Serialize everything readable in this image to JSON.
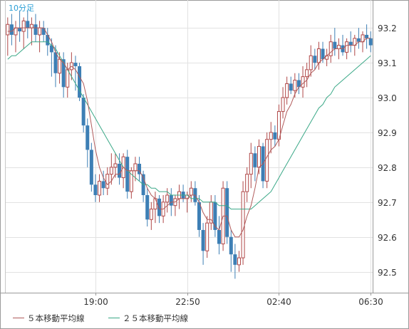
{
  "chart_data": {
    "type": "candlestick",
    "timeframe_label": "10分足",
    "y_ticks": [
      93.2,
      93.1,
      93.0,
      92.9,
      92.8,
      92.7,
      92.6,
      92.5
    ],
    "ylim": [
      92.44,
      93.28
    ],
    "x_tick_labels": [
      "19:00",
      "22:50",
      "02:40",
      "06:30"
    ],
    "x_tick_positions": [
      22,
      45,
      68,
      91
    ],
    "candle_count": 92,
    "grid": true,
    "legend_placement": "bottom",
    "legend": [
      {
        "label": "５本移動平均線",
        "color": "#b05a5a"
      },
      {
        "label": "２５本移動平均線",
        "color": "#3aa887"
      }
    ],
    "candles_ohlc": [
      [
        93.18,
        93.23,
        93.12,
        93.21
      ],
      [
        93.21,
        93.24,
        93.15,
        93.18
      ],
      [
        93.18,
        93.22,
        93.13,
        93.2
      ],
      [
        93.2,
        93.25,
        93.16,
        93.19
      ],
      [
        93.19,
        93.23,
        93.14,
        93.22
      ],
      [
        93.22,
        93.25,
        93.17,
        93.2
      ],
      [
        93.2,
        93.23,
        93.15,
        93.21
      ],
      [
        93.21,
        93.24,
        93.16,
        93.18
      ],
      [
        93.18,
        93.22,
        93.13,
        93.2
      ],
      [
        93.2,
        93.22,
        93.16,
        93.18
      ],
      [
        93.18,
        93.2,
        93.12,
        93.15
      ],
      [
        93.15,
        93.17,
        93.06,
        93.13
      ],
      [
        93.13,
        93.15,
        93.03,
        93.07
      ],
      [
        93.07,
        93.13,
        93.04,
        93.11
      ],
      [
        93.11,
        93.13,
        93.0,
        93.03
      ],
      [
        93.03,
        93.1,
        93.0,
        93.08
      ],
      [
        93.08,
        93.13,
        93.05,
        93.1
      ],
      [
        93.1,
        93.12,
        93.02,
        93.09
      ],
      [
        93.09,
        93.1,
        92.99,
        93.0
      ],
      [
        93.0,
        93.01,
        92.9,
        92.92
      ],
      [
        92.92,
        92.94,
        92.8,
        92.85
      ],
      [
        92.85,
        92.87,
        92.73,
        92.75
      ],
      [
        92.75,
        92.78,
        92.7,
        92.72
      ],
      [
        92.72,
        92.78,
        92.7,
        92.76
      ],
      [
        92.76,
        92.79,
        92.72,
        92.74
      ],
      [
        92.74,
        92.8,
        92.72,
        92.78
      ],
      [
        92.78,
        92.84,
        92.75,
        92.8
      ],
      [
        92.8,
        92.84,
        92.77,
        92.81
      ],
      [
        92.81,
        92.84,
        92.75,
        92.77
      ],
      [
        92.77,
        92.84,
        92.74,
        92.83
      ],
      [
        92.83,
        92.85,
        92.71,
        92.73
      ],
      [
        92.73,
        92.8,
        92.71,
        92.79
      ],
      [
        92.79,
        92.83,
        92.76,
        92.81
      ],
      [
        92.81,
        92.83,
        92.76,
        92.78
      ],
      [
        92.78,
        92.79,
        92.7,
        92.72
      ],
      [
        92.72,
        92.74,
        92.63,
        92.65
      ],
      [
        92.65,
        92.7,
        92.62,
        92.68
      ],
      [
        92.68,
        92.73,
        92.64,
        92.71
      ],
      [
        92.71,
        92.72,
        92.64,
        92.66
      ],
      [
        92.66,
        92.72,
        92.64,
        92.7
      ],
      [
        92.7,
        92.74,
        92.67,
        92.72
      ],
      [
        92.72,
        92.74,
        92.66,
        92.69
      ],
      [
        92.69,
        92.72,
        92.66,
        92.71
      ],
      [
        92.71,
        92.75,
        92.68,
        92.73
      ],
      [
        92.73,
        92.75,
        92.7,
        92.71
      ],
      [
        92.71,
        92.73,
        92.67,
        92.72
      ],
      [
        92.72,
        92.76,
        92.7,
        92.74
      ],
      [
        92.74,
        92.76,
        92.69,
        92.7
      ],
      [
        92.7,
        92.72,
        92.6,
        92.62
      ],
      [
        92.62,
        92.64,
        92.52,
        92.56
      ],
      [
        92.56,
        92.66,
        92.54,
        92.64
      ],
      [
        92.64,
        92.72,
        92.62,
        92.7
      ],
      [
        92.7,
        92.72,
        92.6,
        92.62
      ],
      [
        92.62,
        92.66,
        92.55,
        92.58
      ],
      [
        92.58,
        92.76,
        92.56,
        92.74
      ],
      [
        92.74,
        92.76,
        92.58,
        92.6
      ],
      [
        92.6,
        92.62,
        92.5,
        92.55
      ],
      [
        92.55,
        92.58,
        92.48,
        92.52
      ],
      [
        92.52,
        92.56,
        92.5,
        92.54
      ],
      [
        92.54,
        92.76,
        92.52,
        92.73
      ],
      [
        92.73,
        92.8,
        92.7,
        92.78
      ],
      [
        92.78,
        92.87,
        92.74,
        92.84
      ],
      [
        92.84,
        92.86,
        92.76,
        92.8
      ],
      [
        92.8,
        92.88,
        92.78,
        92.86
      ],
      [
        92.86,
        92.87,
        92.74,
        92.76
      ],
      [
        92.76,
        92.9,
        92.74,
        92.88
      ],
      [
        92.88,
        92.93,
        92.84,
        92.9
      ],
      [
        92.9,
        92.92,
        92.86,
        92.88
      ],
      [
        92.88,
        92.98,
        92.86,
        92.96
      ],
      [
        92.96,
        93.03,
        92.94,
        93.0
      ],
      [
        93.0,
        93.06,
        92.98,
        93.04
      ],
      [
        93.04,
        93.06,
        93.01,
        93.02
      ],
      [
        93.02,
        93.07,
        93.0,
        93.05
      ],
      [
        93.05,
        93.07,
        93.01,
        93.03
      ],
      [
        93.03,
        93.09,
        93.0,
        93.06
      ],
      [
        93.06,
        93.1,
        93.03,
        93.08
      ],
      [
        93.08,
        93.15,
        93.06,
        93.12
      ],
      [
        93.12,
        93.14,
        93.08,
        93.1
      ],
      [
        93.1,
        93.16,
        93.08,
        93.14
      ],
      [
        93.14,
        93.16,
        93.1,
        93.11
      ],
      [
        93.11,
        93.14,
        93.09,
        93.12
      ],
      [
        93.12,
        93.18,
        93.1,
        93.16
      ],
      [
        93.16,
        93.2,
        93.12,
        93.14
      ],
      [
        93.14,
        93.17,
        93.11,
        93.15
      ],
      [
        93.15,
        93.18,
        93.12,
        93.13
      ],
      [
        93.13,
        93.17,
        93.11,
        93.16
      ],
      [
        93.16,
        93.19,
        93.13,
        93.15
      ],
      [
        93.15,
        93.18,
        93.12,
        93.17
      ],
      [
        93.17,
        93.2,
        93.14,
        93.16
      ],
      [
        93.16,
        93.19,
        93.13,
        93.18
      ],
      [
        93.18,
        93.21,
        93.14,
        93.17
      ],
      [
        93.17,
        93.19,
        93.13,
        93.15
      ]
    ],
    "ma5": [
      93.19,
      93.19,
      93.2,
      93.2,
      93.2,
      93.2,
      93.2,
      93.2,
      93.2,
      93.2,
      93.18,
      93.16,
      93.13,
      93.11,
      93.1,
      93.08,
      93.09,
      93.08,
      93.06,
      93.04,
      92.99,
      92.92,
      92.85,
      92.8,
      92.77,
      92.75,
      92.76,
      92.78,
      92.78,
      92.8,
      92.79,
      92.79,
      92.79,
      92.79,
      92.77,
      92.74,
      92.72,
      92.71,
      92.68,
      92.68,
      92.69,
      92.7,
      92.7,
      92.71,
      92.71,
      92.71,
      92.72,
      92.72,
      92.7,
      92.67,
      92.65,
      92.65,
      92.63,
      92.62,
      92.66,
      92.66,
      92.62,
      92.6,
      92.6,
      92.62,
      92.66,
      92.69,
      92.74,
      92.8,
      92.81,
      92.83,
      92.85,
      92.86,
      92.88,
      92.92,
      92.96,
      92.98,
      93.01,
      93.03,
      93.04,
      93.05,
      93.07,
      93.08,
      93.1,
      93.11,
      93.12,
      93.13,
      93.14,
      93.14,
      93.14,
      93.15,
      93.15,
      93.15,
      93.16,
      93.16,
      93.17,
      93.17
    ],
    "ma25": [
      93.11,
      93.12,
      93.12,
      93.13,
      93.14,
      93.15,
      93.16,
      93.16,
      93.16,
      93.16,
      93.16,
      93.15,
      93.14,
      93.12,
      93.1,
      93.08,
      93.06,
      93.04,
      93.02,
      93.0,
      92.98,
      92.96,
      92.94,
      92.92,
      92.9,
      92.88,
      92.86,
      92.84,
      92.82,
      92.8,
      92.79,
      92.78,
      92.77,
      92.76,
      92.75,
      92.75,
      92.74,
      92.74,
      92.73,
      92.73,
      92.73,
      92.72,
      92.72,
      92.72,
      92.72,
      92.72,
      92.71,
      92.71,
      92.71,
      92.7,
      92.7,
      92.7,
      92.7,
      92.69,
      92.69,
      92.69,
      92.68,
      92.68,
      92.68,
      92.68,
      92.68,
      92.68,
      92.69,
      92.7,
      92.71,
      92.72,
      92.73,
      92.75,
      92.77,
      92.79,
      92.81,
      92.83,
      92.85,
      92.87,
      92.89,
      92.91,
      92.93,
      92.95,
      92.97,
      92.98,
      93.0,
      93.01,
      93.03,
      93.04,
      93.05,
      93.06,
      93.07,
      93.08,
      93.09,
      93.1,
      93.11,
      93.12
    ]
  }
}
